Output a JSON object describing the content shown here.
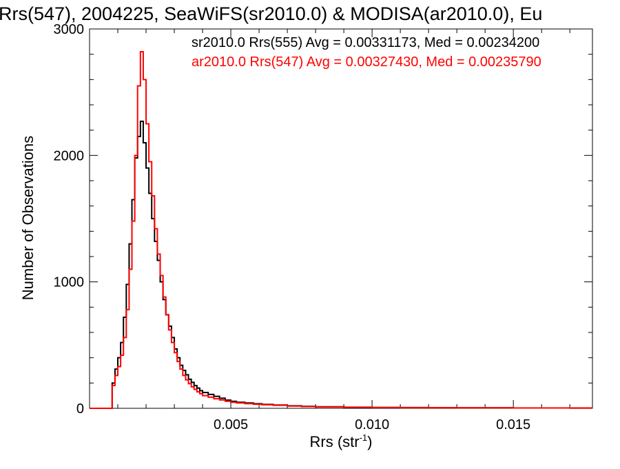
{
  "chart_data": {
    "type": "line",
    "title": "Rrs(547), 2004225, SeaWiFS(sr2010.0) & MODISA(ar2010.0), Eu",
    "xlabel_main": "Rrs (str",
    "xlabel_sup": "-1",
    "xlabel_close": ")",
    "ylabel": "Number of Observations",
    "xlim": [
      0.0,
      0.0178
    ],
    "ylim": [
      0,
      3000
    ],
    "x_ticks": [
      {
        "value": 0.005,
        "label": "0.005"
      },
      {
        "value": 0.01,
        "label": "0.010"
      },
      {
        "value": 0.015,
        "label": "0.015"
      }
    ],
    "y_ticks": [
      {
        "value": 0,
        "label": "0"
      },
      {
        "value": 1000,
        "label": "1000"
      },
      {
        "value": 2000,
        "label": "2000"
      },
      {
        "value": 3000,
        "label": "3000"
      }
    ],
    "grid": false,
    "legend_position": "top-right",
    "series": [
      {
        "name": "sr2010.0 Rrs(555) Avg = 0.00331173, Med = 0.00234200",
        "color": "#000000",
        "x": [
          0.0008,
          0.0009,
          0.001,
          0.0011,
          0.0012,
          0.0013,
          0.0014,
          0.0015,
          0.0016,
          0.0017,
          0.0018,
          0.0019,
          0.002,
          0.0021,
          0.0022,
          0.0023,
          0.0024,
          0.0025,
          0.0026,
          0.0027,
          0.0028,
          0.0029,
          0.003,
          0.0031,
          0.0032,
          0.0033,
          0.0034,
          0.0035,
          0.0036,
          0.0037,
          0.0038,
          0.0039,
          0.004,
          0.0042,
          0.0044,
          0.0046,
          0.0048,
          0.005,
          0.0052,
          0.0055,
          0.0058,
          0.0061,
          0.0065,
          0.007,
          0.0075,
          0.008,
          0.009,
          0.01,
          0.011,
          0.012,
          0.013,
          0.014,
          0.015,
          0.016,
          0.017,
          0.0178
        ],
        "values": [
          200,
          310,
          400,
          520,
          720,
          980,
          1300,
          1650,
          1980,
          2150,
          2270,
          2100,
          1900,
          1700,
          1500,
          1320,
          1170,
          1000,
          860,
          740,
          650,
          560,
          470,
          400,
          340,
          300,
          265,
          230,
          205,
          180,
          160,
          140,
          125,
          110,
          95,
          80,
          65,
          55,
          48,
          42,
          36,
          31,
          26,
          20,
          16,
          12,
          9,
          7,
          6,
          5,
          4,
          4,
          3,
          3,
          2,
          2
        ]
      },
      {
        "name": "ar2010.0 Rrs(547) Avg = 0.00327430, Med = 0.00235790",
        "color": "#ff0000",
        "x": [
          0.0008,
          0.0009,
          0.001,
          0.0011,
          0.0012,
          0.0013,
          0.0014,
          0.0015,
          0.0016,
          0.0017,
          0.0018,
          0.0019,
          0.002,
          0.0021,
          0.0022,
          0.0023,
          0.0024,
          0.0025,
          0.0026,
          0.0027,
          0.0028,
          0.0029,
          0.003,
          0.0031,
          0.0032,
          0.0033,
          0.0034,
          0.0035,
          0.0036,
          0.0037,
          0.0038,
          0.0039,
          0.004,
          0.0042,
          0.0044,
          0.0046,
          0.0048,
          0.005,
          0.0052,
          0.0055,
          0.0058,
          0.0061,
          0.0065,
          0.007,
          0.0075,
          0.008,
          0.009,
          0.01,
          0.011,
          0.012,
          0.013,
          0.014,
          0.015,
          0.016,
          0.017,
          0.0178
        ],
        "values": [
          180,
          260,
          330,
          420,
          560,
          780,
          1100,
          1480,
          2000,
          2550,
          2820,
          2600,
          2250,
          1950,
          1680,
          1420,
          1220,
          1050,
          880,
          740,
          620,
          520,
          440,
          370,
          310,
          260,
          225,
          195,
          170,
          150,
          130,
          115,
          100,
          88,
          76,
          66,
          56,
          48,
          42,
          37,
          32,
          28,
          24,
          18,
          14,
          11,
          8,
          6,
          5,
          5,
          4,
          4,
          3,
          3,
          2,
          2
        ]
      }
    ]
  }
}
